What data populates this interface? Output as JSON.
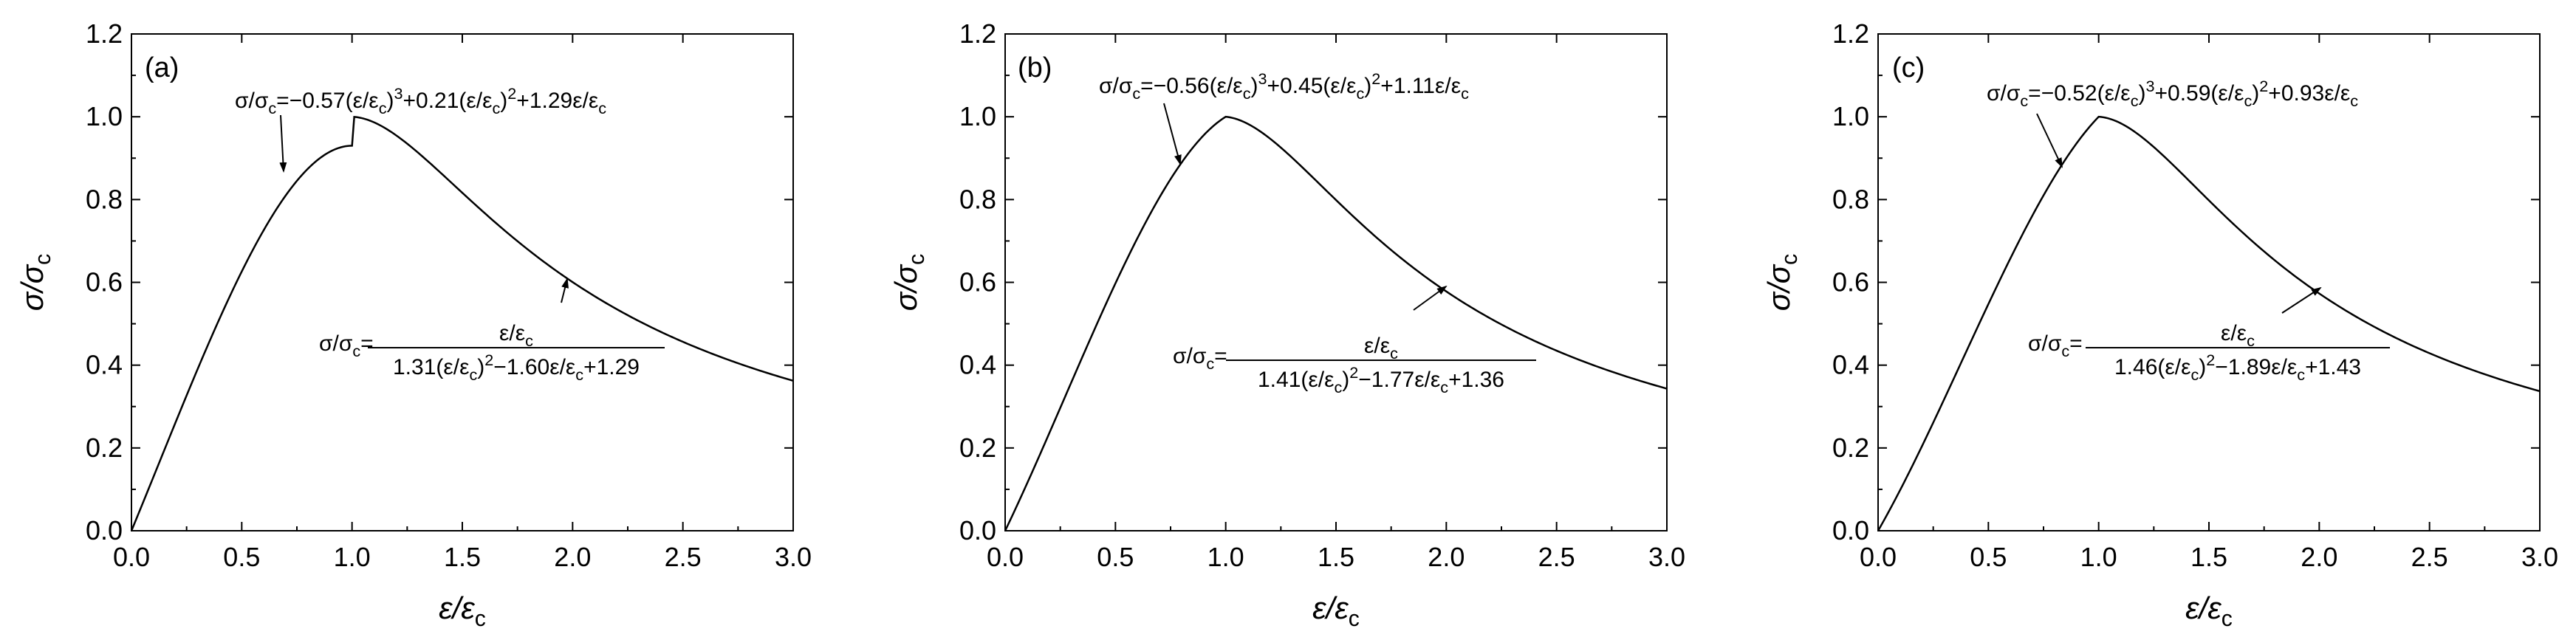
{
  "chart_data": [
    {
      "type": "line",
      "panel_label": "(a)",
      "xlim": [
        0.0,
        3.0
      ],
      "ylim": [
        0.0,
        1.2
      ],
      "xticks": [
        "0.0",
        "0.5",
        "1.0",
        "1.5",
        "2.0",
        "2.5",
        "3.0"
      ],
      "yticks": [
        "0.0",
        "0.2",
        "0.4",
        "0.6",
        "0.8",
        "1.0",
        "1.2"
      ],
      "xlabel": {
        "main": "ε/ε",
        "sub": "c"
      },
      "ylabel": {
        "main": "σ/σ",
        "sub": "c"
      },
      "grid": false,
      "ascending": {
        "a": -0.57,
        "b": 0.21,
        "c": 1.29
      },
      "descending": {
        "A": 1.31,
        "B": -1.6,
        "C": 1.29
      },
      "eq_ascending": [
        {
          "t": "σ/σ"
        },
        {
          "t": "c",
          "s": "sub"
        },
        {
          "t": "=−0.57(ε/ε"
        },
        {
          "t": "c",
          "s": "sub"
        },
        {
          "t": ")"
        },
        {
          "t": "3",
          "s": "sup"
        },
        {
          "t": "+0.21(ε/ε"
        },
        {
          "t": "c",
          "s": "sub"
        },
        {
          "t": ")"
        },
        {
          "t": "2",
          "s": "sup"
        },
        {
          "t": "+1.29ε/ε"
        },
        {
          "t": "c",
          "s": "sub"
        }
      ],
      "eq_desc_lhs": [
        {
          "t": "σ/σ"
        },
        {
          "t": "c",
          "s": "sub"
        },
        {
          "t": "="
        }
      ],
      "eq_desc_num": [
        {
          "t": "ε/ε"
        },
        {
          "t": "c",
          "s": "sub"
        }
      ],
      "eq_desc_den": [
        {
          "t": "1.31(ε/ε"
        },
        {
          "t": "c",
          "s": "sub"
        },
        {
          "t": ")"
        },
        {
          "t": "2",
          "s": "sup"
        },
        {
          "t": "−1.60ε/ε"
        },
        {
          "t": "c",
          "s": "sub"
        },
        {
          "t": "+1.29"
        }
      ]
    },
    {
      "type": "line",
      "panel_label": "(b)",
      "xlim": [
        0.0,
        3.0
      ],
      "ylim": [
        0.0,
        1.2
      ],
      "xticks": [
        "0.0",
        "0.5",
        "1.0",
        "1.5",
        "2.0",
        "2.5",
        "3.0"
      ],
      "yticks": [
        "0.0",
        "0.2",
        "0.4",
        "0.6",
        "0.8",
        "1.0",
        "1.2"
      ],
      "xlabel": {
        "main": "ε/ε",
        "sub": "c"
      },
      "ylabel": {
        "main": "σ/σ",
        "sub": "c"
      },
      "grid": false,
      "ascending": {
        "a": -0.56,
        "b": 0.45,
        "c": 1.11
      },
      "descending": {
        "A": 1.41,
        "B": -1.77,
        "C": 1.36
      },
      "eq_ascending": [
        {
          "t": "σ/σ"
        },
        {
          "t": "c",
          "s": "sub"
        },
        {
          "t": "=−0.56(ε/ε"
        },
        {
          "t": "c",
          "s": "sub"
        },
        {
          "t": ")"
        },
        {
          "t": "3",
          "s": "sup"
        },
        {
          "t": "+0.45(ε/ε"
        },
        {
          "t": "c",
          "s": "sub"
        },
        {
          "t": ")"
        },
        {
          "t": "2",
          "s": "sup"
        },
        {
          "t": "+1.11ε/ε"
        },
        {
          "t": "c",
          "s": "sub"
        }
      ],
      "eq_desc_lhs": [
        {
          "t": "σ/σ"
        },
        {
          "t": "c",
          "s": "sub"
        },
        {
          "t": "="
        }
      ],
      "eq_desc_num": [
        {
          "t": "ε/ε"
        },
        {
          "t": "c",
          "s": "sub"
        }
      ],
      "eq_desc_den": [
        {
          "t": "1.41(ε/ε"
        },
        {
          "t": "c",
          "s": "sub"
        },
        {
          "t": ")"
        },
        {
          "t": "2",
          "s": "sup"
        },
        {
          "t": "−1.77ε/ε"
        },
        {
          "t": "c",
          "s": "sub"
        },
        {
          "t": "+1.36"
        }
      ]
    },
    {
      "type": "line",
      "panel_label": "(c)",
      "xlim": [
        0.0,
        3.0
      ],
      "ylim": [
        0.0,
        1.2
      ],
      "xticks": [
        "0.0",
        "0.5",
        "1.0",
        "1.5",
        "2.0",
        "2.5",
        "3.0"
      ],
      "yticks": [
        "0.0",
        "0.2",
        "0.4",
        "0.6",
        "0.8",
        "1.0",
        "1.2"
      ],
      "xlabel": {
        "main": "ε/ε",
        "sub": "c"
      },
      "ylabel": {
        "main": "σ/σ",
        "sub": "c"
      },
      "grid": false,
      "ascending": {
        "a": -0.52,
        "b": 0.59,
        "c": 0.93
      },
      "descending": {
        "A": 1.46,
        "B": -1.89,
        "C": 1.43
      },
      "eq_ascending": [
        {
          "t": "σ/σ"
        },
        {
          "t": "c",
          "s": "sub"
        },
        {
          "t": "=−0.52(ε/ε"
        },
        {
          "t": "c",
          "s": "sub"
        },
        {
          "t": ")"
        },
        {
          "t": "3",
          "s": "sup"
        },
        {
          "t": "+0.59(ε/ε"
        },
        {
          "t": "c",
          "s": "sub"
        },
        {
          "t": ")"
        },
        {
          "t": "2",
          "s": "sup"
        },
        {
          "t": "+0.93ε/ε"
        },
        {
          "t": "c",
          "s": "sub"
        }
      ],
      "eq_desc_lhs": [
        {
          "t": "σ/σ"
        },
        {
          "t": "c",
          "s": "sub"
        },
        {
          "t": "="
        }
      ],
      "eq_desc_num": [
        {
          "t": "ε/ε"
        },
        {
          "t": "c",
          "s": "sub"
        }
      ],
      "eq_desc_den": [
        {
          "t": "1.46(ε/ε"
        },
        {
          "t": "c",
          "s": "sub"
        },
        {
          "t": ")"
        },
        {
          "t": "2",
          "s": "sup"
        },
        {
          "t": "−1.89ε/ε"
        },
        {
          "t": "c",
          "s": "sub"
        },
        {
          "t": "+1.43"
        }
      ]
    }
  ]
}
